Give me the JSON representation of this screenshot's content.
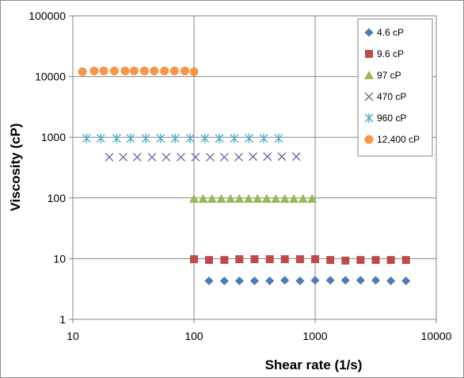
{
  "chart_data": {
    "type": "scatter",
    "xlabel": "Shear rate (1/s)",
    "ylabel": "Viscosity (cP)",
    "xscale": "log",
    "yscale": "log",
    "xlim": [
      10,
      10000
    ],
    "ylim": [
      1,
      100000
    ],
    "x_ticks": [
      "10",
      "100",
      "1000",
      "10000"
    ],
    "y_ticks": [
      "1",
      "10",
      "100",
      "1000",
      "10000",
      "100000"
    ],
    "grid": "major gridlines on",
    "legend_position": "right",
    "series": [
      {
        "name": "4.6 cP",
        "marker": "diamond",
        "color": "#4a7ebb",
        "x": [
          133,
          178,
          237,
          316,
          422,
          562,
          750,
          1000,
          1334,
          1778,
          2371,
          3162,
          4217,
          5623
        ],
        "y": [
          4.3,
          4.3,
          4.3,
          4.3,
          4.3,
          4.4,
          4.3,
          4.4,
          4.4,
          4.4,
          4.4,
          4.4,
          4.3,
          4.3
        ]
      },
      {
        "name": "9.6 cP",
        "marker": "square",
        "color": "#be4b48",
        "x": [
          100,
          133,
          178,
          237,
          316,
          422,
          562,
          750,
          1000,
          1334,
          1778,
          2371,
          3162,
          4217,
          5623
        ],
        "y": [
          9.8,
          9.5,
          9.5,
          9.8,
          9.8,
          9.8,
          9.8,
          9.8,
          9.8,
          9.5,
          9.3,
          9.5,
          9.5,
          9.5,
          9.5
        ]
      },
      {
        "name": "97 cP",
        "marker": "triangle",
        "color": "#98b954",
        "x": [
          100,
          119,
          141,
          168,
          200,
          237,
          282,
          335,
          398,
          473,
          562,
          668,
          794,
          944
        ],
        "y": [
          97,
          97,
          97,
          97,
          97,
          97,
          97,
          97,
          97,
          97,
          97,
          97,
          97,
          97
        ]
      },
      {
        "name": "470 cP",
        "marker": "x",
        "color": "#7d60a0",
        "x": [
          20,
          26,
          34,
          45,
          59,
          78,
          103,
          136,
          178,
          234,
          307,
          404,
          531,
          698
        ],
        "y": [
          470,
          470,
          470,
          470,
          470,
          470,
          470,
          470,
          470,
          470,
          480,
          480,
          480,
          480
        ]
      },
      {
        "name": "960 cP",
        "marker": "asterisk",
        "color": "#46aac5",
        "x": [
          13,
          17,
          23,
          30,
          40,
          53,
          70,
          93,
          123,
          162,
          215,
          285,
          377,
          500
        ],
        "y": [
          960,
          960,
          960,
          960,
          960,
          960,
          960,
          960,
          960,
          960,
          960,
          960,
          960,
          960
        ]
      },
      {
        "name": "12,400 cP",
        "marker": "circle",
        "color": "#f79646",
        "x": [
          12,
          15,
          18,
          22,
          27,
          32,
          39,
          47,
          57,
          69,
          84,
          100
        ],
        "y": [
          12000,
          12400,
          12400,
          12400,
          12400,
          12400,
          12400,
          12400,
          12400,
          12400,
          12400,
          12000
        ]
      }
    ]
  }
}
